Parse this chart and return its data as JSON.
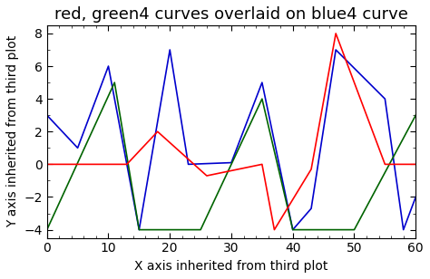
{
  "title": "red, green4 curves overlaid on blue4 curve",
  "xlabel": "X axis inherited from third plot",
  "ylabel": "Y axis inherited from third plot",
  "xlim": [
    0,
    60
  ],
  "ylim": [
    -4.5,
    8.5
  ],
  "yticks": [
    -4.0,
    -2.0,
    0.0,
    2.0,
    4.0,
    6.0,
    8.0
  ],
  "xticks": [
    0,
    10,
    20,
    30,
    40,
    50,
    60
  ],
  "blue": {
    "x": [
      0,
      5,
      10,
      15,
      20,
      23,
      30,
      35,
      40,
      43,
      47,
      55,
      58,
      60
    ],
    "y": [
      3,
      1,
      6,
      -4,
      7,
      0,
      0.1,
      5,
      -4,
      -2.7,
      7,
      4,
      -4,
      -2
    ]
  },
  "green": {
    "x": [
      0,
      11,
      15,
      25,
      35,
      40,
      50,
      60
    ],
    "y": [
      -4,
      5,
      -4,
      -4,
      4,
      -4,
      -4,
      3
    ]
  },
  "red": {
    "x": [
      0,
      13,
      18,
      26,
      35,
      37,
      43,
      47,
      55,
      60
    ],
    "y": [
      0,
      0,
      2,
      -0.7,
      0,
      -4,
      -0.3,
      8,
      0,
      0
    ]
  },
  "blue_color": "#0000cd",
  "green_color": "#006400",
  "red_color": "#ff0000",
  "linewidth": 1.2,
  "title_fontsize": 13,
  "label_fontsize": 10,
  "tick_fontsize": 10,
  "background_color": "#ffffff",
  "plot_bg": "#ffffff"
}
